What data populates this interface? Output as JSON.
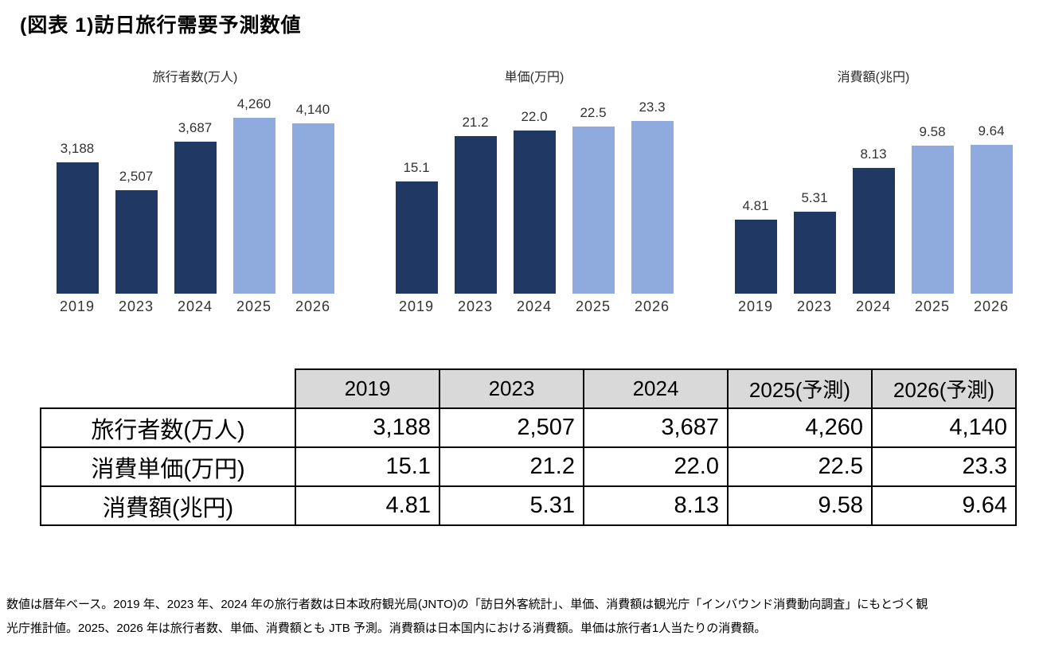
{
  "page_title": "(図表 1)訪日旅行需要予測数値",
  "colors": {
    "bar_actual": "#1F3864",
    "bar_forecast": "#8FAADC",
    "table_header_bg": "#D9D9D9"
  },
  "chart_data": [
    {
      "type": "bar",
      "title": "旅行者数(万人)",
      "categories": [
        "2019",
        "2023",
        "2024",
        "2025",
        "2026"
      ],
      "values": [
        3188,
        2507,
        3687,
        4260,
        4140
      ],
      "labels": [
        "3,188",
        "2,507",
        "3,687",
        "4,260",
        "4,140"
      ],
      "xlabel": "",
      "ylabel": "",
      "ylim": [
        0,
        4500
      ],
      "grid": false,
      "legend": "none",
      "forecast_from_index": 3
    },
    {
      "type": "bar",
      "title": "単価(万円)",
      "categories": [
        "2019",
        "2023",
        "2024",
        "2025",
        "2026"
      ],
      "values": [
        15.1,
        21.2,
        22.0,
        22.5,
        23.3
      ],
      "labels": [
        "15.1",
        "21.2",
        "22.0",
        "22.5",
        "23.3"
      ],
      "xlabel": "",
      "ylabel": "",
      "ylim": [
        0,
        25
      ],
      "grid": false,
      "legend": "none",
      "forecast_from_index": 3
    },
    {
      "type": "bar",
      "title": "消費額(兆円)",
      "categories": [
        "2019",
        "2023",
        "2024",
        "2025",
        "2026"
      ],
      "values": [
        4.81,
        5.31,
        8.13,
        9.58,
        9.64
      ],
      "labels": [
        "4.81",
        "5.31",
        "8.13",
        "9.58",
        "9.64"
      ],
      "xlabel": "",
      "ylabel": "",
      "ylim": [
        0,
        12
      ],
      "grid": false,
      "legend": "none",
      "forecast_from_index": 3
    }
  ],
  "table": {
    "corner_label": "",
    "columns": [
      "2019",
      "2023",
      "2024",
      "2025(予測)",
      "2026(予測)"
    ],
    "rows": [
      {
        "label": "旅行者数(万人)",
        "values": [
          "3,188",
          "2,507",
          "3,687",
          "4,260",
          "4,140"
        ]
      },
      {
        "label": "消費単価(万円)",
        "values": [
          "15.1",
          "21.2",
          "22.0",
          "22.5",
          "23.3"
        ]
      },
      {
        "label": "消費額(兆円)",
        "values": [
          "4.81",
          "5.31",
          "8.13",
          "9.58",
          "9.64"
        ]
      }
    ]
  },
  "footnote": {
    "line1": "数値は暦年ベース。2019 年、2023 年、2024 年の旅行者数は日本政府観光局(JNTO)の「訪日外客統計」、単価、消費額は観光庁「インバウンド消費動向調査」にもとづく観",
    "line2": "光庁推計値。2025、2026 年は旅行者数、単価、消費額とも JTB 予測。消費額は日本国内における消費額。単価は旅行者1人当たりの消費額。"
  }
}
